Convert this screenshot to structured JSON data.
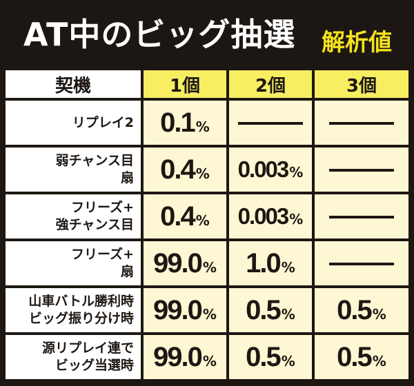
{
  "title": "AT中のビッグ抽選",
  "subtitle": "解析値",
  "table": {
    "header_label": "契機",
    "columns": [
      "1個",
      "2個",
      "3個"
    ],
    "rows": [
      {
        "label": [
          "リプレイ2"
        ],
        "values": [
          "0.1",
          "",
          ""
        ]
      },
      {
        "label": [
          "弱チャンス目",
          "扇"
        ],
        "values": [
          "0.4",
          "0.003",
          ""
        ]
      },
      {
        "label": [
          "フリーズ+",
          "強チャンス目"
        ],
        "values": [
          "0.4",
          "0.003",
          ""
        ]
      },
      {
        "label": [
          "フリーズ+",
          "扇"
        ],
        "values": [
          "99.0",
          "1.0",
          ""
        ]
      },
      {
        "label": [
          "山車バトル勝利時",
          "ビッグ振り分け時"
        ],
        "values": [
          "99.0",
          "0.5",
          "0.5"
        ]
      },
      {
        "label": [
          "源リプレイ連で",
          "ビッグ当選時"
        ],
        "values": [
          "99.0",
          "0.5",
          "0.5"
        ]
      }
    ],
    "unit": "%"
  },
  "colors": {
    "background": "#1d1713",
    "header_yellow": "#f8ee62",
    "cell_cream": "#fdf7d3",
    "subtitle_yellow": "#f4e21c"
  }
}
